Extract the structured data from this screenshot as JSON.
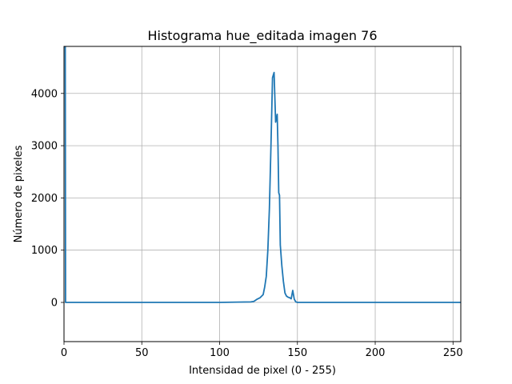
{
  "chart_data": {
    "type": "line",
    "title": "Histograma hue_editada imagen 76",
    "xlabel": "Intensidad de pixel (0 - 255)",
    "ylabel": "Número de pixeles",
    "xlim": [
      0,
      255
    ],
    "ylim": [
      -750,
      4900
    ],
    "grid": true,
    "xticks": [
      0,
      50,
      100,
      150,
      200,
      250
    ],
    "yticks": [
      0,
      1000,
      2000,
      3000,
      4000
    ],
    "line_color": "#1f77b4",
    "series": [
      {
        "name": "hue_editada",
        "x": [
          0,
          0.4,
          0.8,
          1,
          2,
          100,
          120,
          122,
          124,
          126,
          128,
          129,
          130,
          131,
          132,
          133,
          134,
          135,
          136,
          137,
          137.5,
          138,
          138.5,
          139,
          140,
          141,
          142,
          143,
          144,
          145,
          146,
          147,
          148,
          149,
          149.5,
          150,
          151,
          152,
          200,
          255
        ],
        "y": [
          4900,
          4900,
          4900,
          0,
          0,
          0,
          10,
          20,
          60,
          90,
          150,
          300,
          500,
          1000,
          1800,
          3000,
          4300,
          4400,
          3450,
          3600,
          3000,
          2100,
          2050,
          1100,
          700,
          400,
          180,
          120,
          100,
          90,
          70,
          230,
          60,
          10,
          5,
          0,
          0,
          0,
          0,
          0
        ]
      }
    ]
  }
}
